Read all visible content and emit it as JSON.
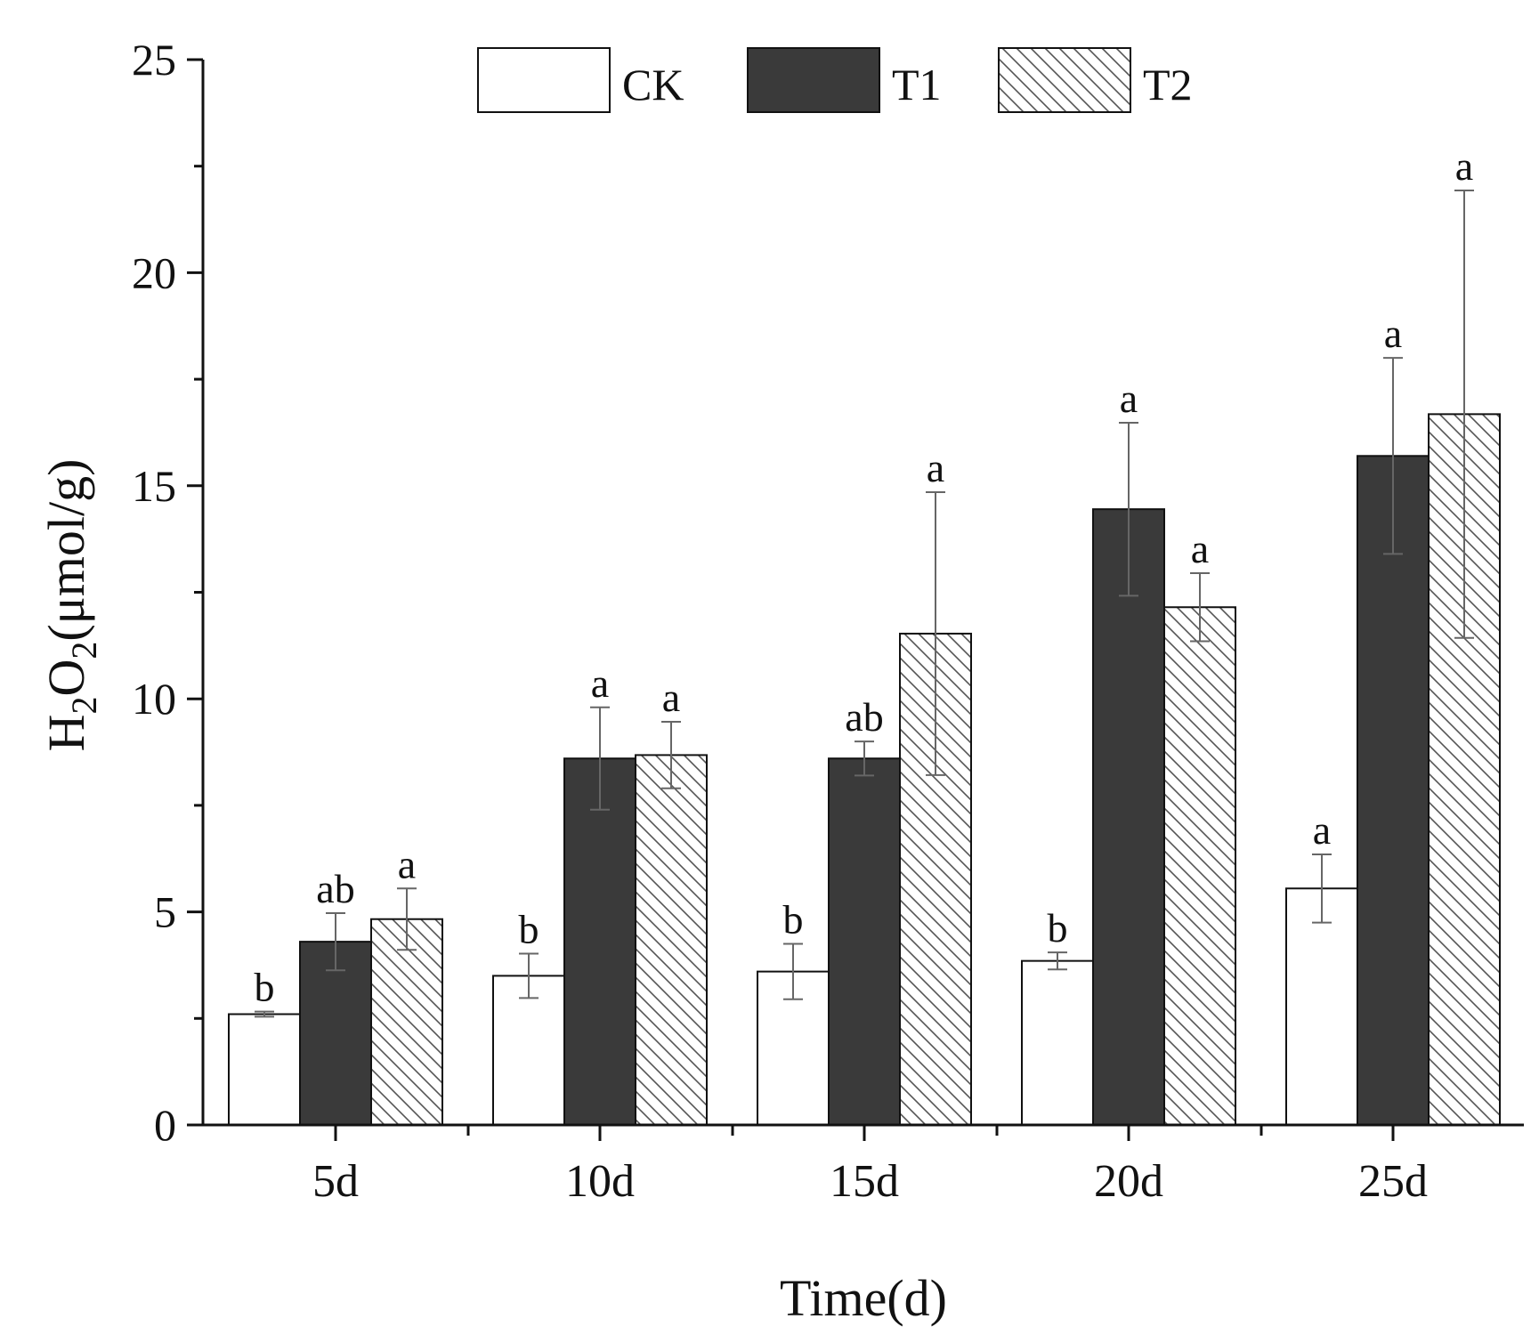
{
  "chart_data": {
    "type": "bar",
    "title": "",
    "xlabel": "Time(d)",
    "ylabel": {
      "prefix": "H",
      "sub1": "2",
      "mid": "O",
      "sub2": "2",
      "suffix": "(μmol/g)"
    },
    "ylim": [
      0,
      25
    ],
    "yticks": [
      0,
      5,
      10,
      15,
      20,
      25
    ],
    "ytick_labels": [
      "0",
      "5",
      "10",
      "15",
      "20",
      "25"
    ],
    "categories": [
      "5d",
      "10d",
      "15d",
      "20d",
      "25d"
    ],
    "legend_position": "top",
    "series": [
      {
        "name": "CK",
        "style": "white",
        "values": [
          2.6,
          3.5,
          3.6,
          3.85,
          5.55
        ],
        "errors": [
          0.06,
          0.52,
          0.65,
          0.2,
          0.8
        ],
        "letters": [
          "b",
          "b",
          "b",
          "b",
          "a"
        ]
      },
      {
        "name": "T1",
        "style": "dark",
        "values": [
          4.3,
          8.6,
          8.6,
          14.45,
          15.7
        ],
        "errors": [
          0.67,
          1.2,
          0.4,
          2.03,
          2.3
        ],
        "letters": [
          "ab",
          "a",
          "ab",
          "a",
          "a"
        ]
      },
      {
        "name": "T2",
        "style": "hatched",
        "values": [
          4.83,
          8.68,
          11.53,
          12.15,
          16.68
        ],
        "errors": [
          0.72,
          0.78,
          3.32,
          0.8,
          5.25
        ],
        "letters": [
          "a",
          "a",
          "a",
          "a",
          "a"
        ]
      }
    ],
    "colors": {
      "ck_fill": "#ffffff",
      "t1_fill": "#3a3a3a",
      "t2_fill": "#ffffff",
      "stroke": "#111111",
      "hatch": "#555555",
      "error": "#666666"
    }
  }
}
